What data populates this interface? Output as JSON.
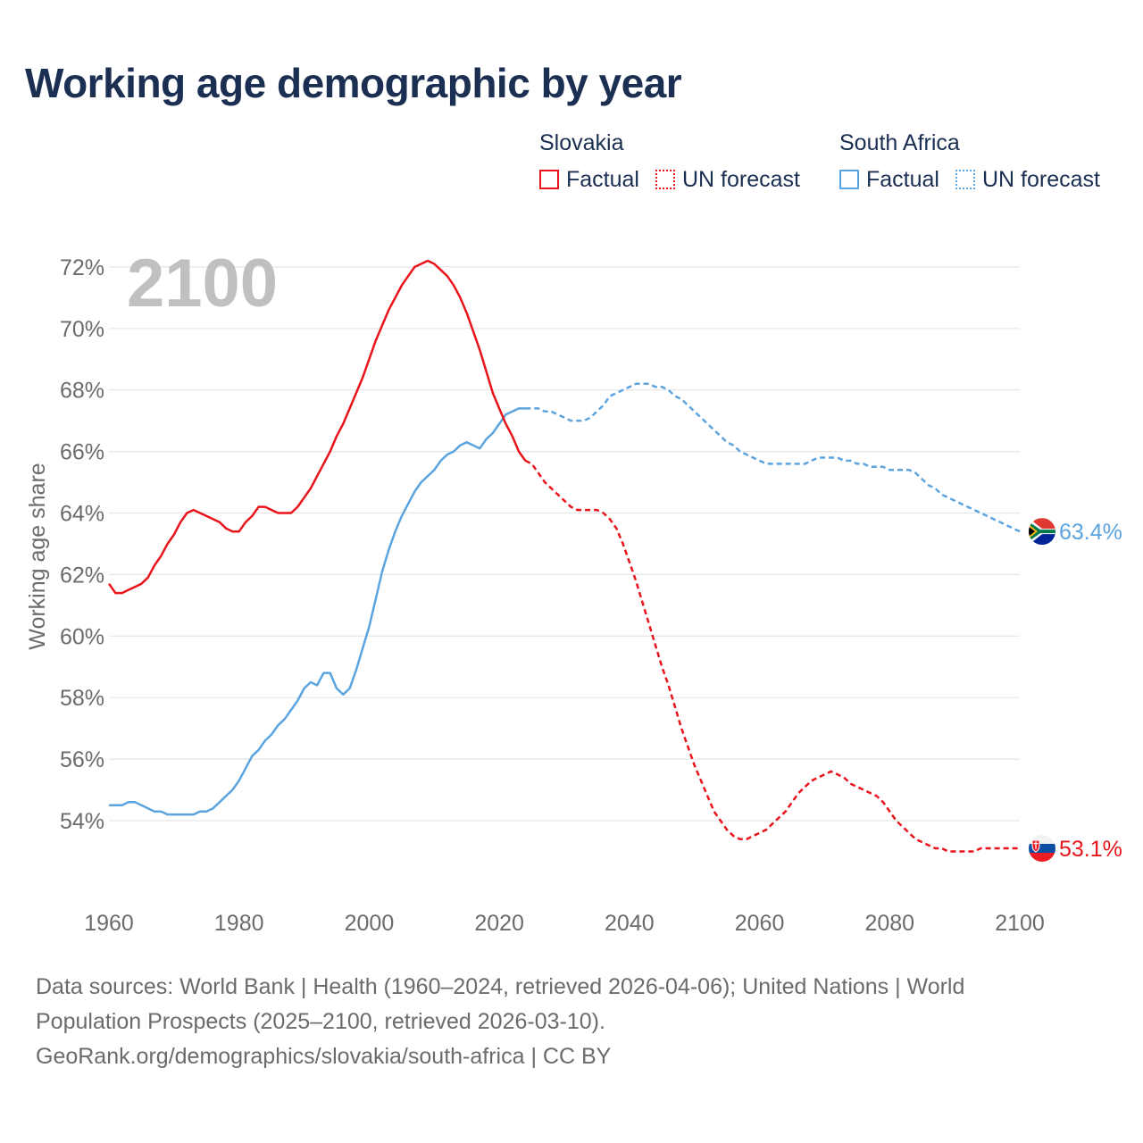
{
  "title": "Working age demographic by year",
  "legend": {
    "groups": [
      {
        "name": "Slovakia",
        "items": [
          {
            "label": "Factual",
            "color": "#e8141b",
            "style": "solid"
          },
          {
            "label": "UN forecast",
            "color": "#e8141b",
            "style": "dotted"
          }
        ]
      },
      {
        "name": "South Africa",
        "items": [
          {
            "label": "Factual",
            "color": "#5ba4e0",
            "style": "solid"
          },
          {
            "label": "UN forecast",
            "color": "#5ba4e0",
            "style": "dotted"
          }
        ]
      }
    ]
  },
  "footer": {
    "line1": "Data sources: World Bank | Health (1960–2024, retrieved 2026-04-06); United Nations | World",
    "line2": "Population Prospects (2025–2100, retrieved 2026-03-10).",
    "line3": "GeoRank.org/demographics/slovakia/south-africa | CC BY"
  },
  "chart_data": {
    "type": "line",
    "title": "Working age demographic by year",
    "year_label": "2100",
    "xlabel": "",
    "ylabel": "Working age share",
    "xlim": [
      1960,
      2100
    ],
    "ylim": [
      52,
      72.5
    ],
    "x_ticks": [
      1960,
      1980,
      2000,
      2020,
      2040,
      2060,
      2080,
      2100
    ],
    "y_ticks": [
      54,
      56,
      58,
      60,
      62,
      64,
      66,
      68,
      70,
      72
    ],
    "y_tick_labels": [
      "54%",
      "56%",
      "58%",
      "60%",
      "62%",
      "64%",
      "66%",
      "68%",
      "70%",
      "72%"
    ],
    "grid": true,
    "series": [
      {
        "name": "Slovakia",
        "color": "#e8141b",
        "end_label": "53.1%",
        "end_icon": "slovakia-flag-icon",
        "factual": [
          [
            1960,
            61.7
          ],
          [
            1961,
            61.4
          ],
          [
            1962,
            61.4
          ],
          [
            1963,
            61.5
          ],
          [
            1964,
            61.6
          ],
          [
            1965,
            61.7
          ],
          [
            1966,
            61.9
          ],
          [
            1967,
            62.3
          ],
          [
            1968,
            62.6
          ],
          [
            1969,
            63.0
          ],
          [
            1970,
            63.3
          ],
          [
            1971,
            63.7
          ],
          [
            1972,
            64.0
          ],
          [
            1973,
            64.1
          ],
          [
            1974,
            64.0
          ],
          [
            1975,
            63.9
          ],
          [
            1976,
            63.8
          ],
          [
            1977,
            63.7
          ],
          [
            1978,
            63.5
          ],
          [
            1979,
            63.4
          ],
          [
            1980,
            63.4
          ],
          [
            1981,
            63.7
          ],
          [
            1982,
            63.9
          ],
          [
            1983,
            64.2
          ],
          [
            1984,
            64.2
          ],
          [
            1985,
            64.1
          ],
          [
            1986,
            64.0
          ],
          [
            1987,
            64.0
          ],
          [
            1988,
            64.0
          ],
          [
            1989,
            64.2
          ],
          [
            1990,
            64.5
          ],
          [
            1991,
            64.8
          ],
          [
            1992,
            65.2
          ],
          [
            1993,
            65.6
          ],
          [
            1994,
            66.0
          ],
          [
            1995,
            66.5
          ],
          [
            1996,
            66.9
          ],
          [
            1997,
            67.4
          ],
          [
            1998,
            67.9
          ],
          [
            1999,
            68.4
          ],
          [
            2000,
            69.0
          ],
          [
            2001,
            69.6
          ],
          [
            2002,
            70.1
          ],
          [
            2003,
            70.6
          ],
          [
            2004,
            71.0
          ],
          [
            2005,
            71.4
          ],
          [
            2006,
            71.7
          ],
          [
            2007,
            72.0
          ],
          [
            2008,
            72.1
          ],
          [
            2009,
            72.2
          ],
          [
            2010,
            72.1
          ],
          [
            2011,
            71.9
          ],
          [
            2012,
            71.7
          ],
          [
            2013,
            71.4
          ],
          [
            2014,
            71.0
          ],
          [
            2015,
            70.5
          ],
          [
            2016,
            69.9
          ],
          [
            2017,
            69.3
          ],
          [
            2018,
            68.6
          ],
          [
            2019,
            67.9
          ],
          [
            2020,
            67.4
          ],
          [
            2021,
            66.9
          ],
          [
            2022,
            66.5
          ],
          [
            2023,
            66.0
          ],
          [
            2024,
            65.7
          ]
        ],
        "forecast": [
          [
            2024,
            65.7
          ],
          [
            2025,
            65.6
          ],
          [
            2026,
            65.3
          ],
          [
            2027,
            65.0
          ],
          [
            2028,
            64.8
          ],
          [
            2029,
            64.6
          ],
          [
            2030,
            64.4
          ],
          [
            2031,
            64.2
          ],
          [
            2032,
            64.1
          ],
          [
            2033,
            64.1
          ],
          [
            2034,
            64.1
          ],
          [
            2035,
            64.1
          ],
          [
            2036,
            64.0
          ],
          [
            2037,
            63.8
          ],
          [
            2038,
            63.5
          ],
          [
            2039,
            63.0
          ],
          [
            2040,
            62.4
          ],
          [
            2041,
            61.8
          ],
          [
            2042,
            61.1
          ],
          [
            2043,
            60.4
          ],
          [
            2044,
            59.7
          ],
          [
            2045,
            59.0
          ],
          [
            2046,
            58.4
          ],
          [
            2047,
            57.7
          ],
          [
            2048,
            57.0
          ],
          [
            2049,
            56.4
          ],
          [
            2050,
            55.8
          ],
          [
            2051,
            55.3
          ],
          [
            2052,
            54.8
          ],
          [
            2053,
            54.3
          ],
          [
            2054,
            54.0
          ],
          [
            2055,
            53.7
          ],
          [
            2056,
            53.5
          ],
          [
            2057,
            53.4
          ],
          [
            2058,
            53.4
          ],
          [
            2059,
            53.5
          ],
          [
            2060,
            53.6
          ],
          [
            2061,
            53.7
          ],
          [
            2062,
            53.9
          ],
          [
            2063,
            54.1
          ],
          [
            2064,
            54.3
          ],
          [
            2065,
            54.6
          ],
          [
            2066,
            54.9
          ],
          [
            2067,
            55.1
          ],
          [
            2068,
            55.3
          ],
          [
            2069,
            55.4
          ],
          [
            2070,
            55.5
          ],
          [
            2071,
            55.6
          ],
          [
            2072,
            55.5
          ],
          [
            2073,
            55.4
          ],
          [
            2074,
            55.2
          ],
          [
            2075,
            55.1
          ],
          [
            2076,
            55.0
          ],
          [
            2077,
            54.9
          ],
          [
            2078,
            54.8
          ],
          [
            2079,
            54.6
          ],
          [
            2080,
            54.3
          ],
          [
            2081,
            54.0
          ],
          [
            2082,
            53.8
          ],
          [
            2083,
            53.6
          ],
          [
            2084,
            53.4
          ],
          [
            2085,
            53.3
          ],
          [
            2086,
            53.2
          ],
          [
            2087,
            53.1
          ],
          [
            2088,
            53.1
          ],
          [
            2089,
            53.0
          ],
          [
            2090,
            53.0
          ],
          [
            2091,
            53.0
          ],
          [
            2092,
            53.0
          ],
          [
            2093,
            53.0
          ],
          [
            2094,
            53.1
          ],
          [
            2095,
            53.1
          ],
          [
            2096,
            53.1
          ],
          [
            2097,
            53.1
          ],
          [
            2098,
            53.1
          ],
          [
            2099,
            53.1
          ],
          [
            2100,
            53.1
          ]
        ]
      },
      {
        "name": "South Africa",
        "color": "#5ba4e0",
        "end_label": "63.4%",
        "end_icon": "south-africa-flag-icon",
        "factual": [
          [
            1960,
            54.5
          ],
          [
            1961,
            54.5
          ],
          [
            1962,
            54.5
          ],
          [
            1963,
            54.6
          ],
          [
            1964,
            54.6
          ],
          [
            1965,
            54.5
          ],
          [
            1966,
            54.4
          ],
          [
            1967,
            54.3
          ],
          [
            1968,
            54.3
          ],
          [
            1969,
            54.2
          ],
          [
            1970,
            54.2
          ],
          [
            1971,
            54.2
          ],
          [
            1972,
            54.2
          ],
          [
            1973,
            54.2
          ],
          [
            1974,
            54.3
          ],
          [
            1975,
            54.3
          ],
          [
            1976,
            54.4
          ],
          [
            1977,
            54.6
          ],
          [
            1978,
            54.8
          ],
          [
            1979,
            55.0
          ],
          [
            1980,
            55.3
          ],
          [
            1981,
            55.7
          ],
          [
            1982,
            56.1
          ],
          [
            1983,
            56.3
          ],
          [
            1984,
            56.6
          ],
          [
            1985,
            56.8
          ],
          [
            1986,
            57.1
          ],
          [
            1987,
            57.3
          ],
          [
            1988,
            57.6
          ],
          [
            1989,
            57.9
          ],
          [
            1990,
            58.3
          ],
          [
            1991,
            58.5
          ],
          [
            1992,
            58.4
          ],
          [
            1993,
            58.8
          ],
          [
            1994,
            58.8
          ],
          [
            1995,
            58.3
          ],
          [
            1996,
            58.1
          ],
          [
            1997,
            58.3
          ],
          [
            1998,
            58.9
          ],
          [
            1999,
            59.6
          ],
          [
            2000,
            60.3
          ],
          [
            2001,
            61.2
          ],
          [
            2002,
            62.1
          ],
          [
            2003,
            62.8
          ],
          [
            2004,
            63.4
          ],
          [
            2005,
            63.9
          ],
          [
            2006,
            64.3
          ],
          [
            2007,
            64.7
          ],
          [
            2008,
            65.0
          ],
          [
            2009,
            65.2
          ],
          [
            2010,
            65.4
          ],
          [
            2011,
            65.7
          ],
          [
            2012,
            65.9
          ],
          [
            2013,
            66.0
          ],
          [
            2014,
            66.2
          ],
          [
            2015,
            66.3
          ],
          [
            2016,
            66.2
          ],
          [
            2017,
            66.1
          ],
          [
            2018,
            66.4
          ],
          [
            2019,
            66.6
          ],
          [
            2020,
            66.9
          ],
          [
            2021,
            67.2
          ],
          [
            2022,
            67.3
          ],
          [
            2023,
            67.4
          ],
          [
            2024,
            67.4
          ]
        ],
        "forecast": [
          [
            2024,
            67.4
          ],
          [
            2025,
            67.4
          ],
          [
            2026,
            67.4
          ],
          [
            2027,
            67.3
          ],
          [
            2028,
            67.3
          ],
          [
            2029,
            67.2
          ],
          [
            2030,
            67.1
          ],
          [
            2031,
            67.0
          ],
          [
            2032,
            67.0
          ],
          [
            2033,
            67.0
          ],
          [
            2034,
            67.1
          ],
          [
            2035,
            67.3
          ],
          [
            2036,
            67.5
          ],
          [
            2037,
            67.8
          ],
          [
            2038,
            67.9
          ],
          [
            2039,
            68.0
          ],
          [
            2040,
            68.1
          ],
          [
            2041,
            68.2
          ],
          [
            2042,
            68.2
          ],
          [
            2043,
            68.2
          ],
          [
            2044,
            68.1
          ],
          [
            2045,
            68.1
          ],
          [
            2046,
            68.0
          ],
          [
            2047,
            67.8
          ],
          [
            2048,
            67.7
          ],
          [
            2049,
            67.5
          ],
          [
            2050,
            67.3
          ],
          [
            2051,
            67.1
          ],
          [
            2052,
            66.9
          ],
          [
            2053,
            66.7
          ],
          [
            2054,
            66.5
          ],
          [
            2055,
            66.3
          ],
          [
            2056,
            66.2
          ],
          [
            2057,
            66.0
          ],
          [
            2058,
            65.9
          ],
          [
            2059,
            65.8
          ],
          [
            2060,
            65.7
          ],
          [
            2061,
            65.6
          ],
          [
            2062,
            65.6
          ],
          [
            2063,
            65.6
          ],
          [
            2064,
            65.6
          ],
          [
            2065,
            65.6
          ],
          [
            2066,
            65.6
          ],
          [
            2067,
            65.6
          ],
          [
            2068,
            65.7
          ],
          [
            2069,
            65.8
          ],
          [
            2070,
            65.8
          ],
          [
            2071,
            65.8
          ],
          [
            2072,
            65.8
          ],
          [
            2073,
            65.7
          ],
          [
            2074,
            65.7
          ],
          [
            2075,
            65.6
          ],
          [
            2076,
            65.6
          ],
          [
            2077,
            65.5
          ],
          [
            2078,
            65.5
          ],
          [
            2079,
            65.5
          ],
          [
            2080,
            65.4
          ],
          [
            2081,
            65.4
          ],
          [
            2082,
            65.4
          ],
          [
            2083,
            65.4
          ],
          [
            2084,
            65.3
          ],
          [
            2085,
            65.1
          ],
          [
            2086,
            64.9
          ],
          [
            2087,
            64.8
          ],
          [
            2088,
            64.6
          ],
          [
            2089,
            64.5
          ],
          [
            2090,
            64.4
          ],
          [
            2091,
            64.3
          ],
          [
            2092,
            64.2
          ],
          [
            2093,
            64.1
          ],
          [
            2094,
            64.0
          ],
          [
            2095,
            63.9
          ],
          [
            2096,
            63.8
          ],
          [
            2097,
            63.7
          ],
          [
            2098,
            63.6
          ],
          [
            2099,
            63.5
          ],
          [
            2100,
            63.4
          ]
        ]
      }
    ]
  }
}
